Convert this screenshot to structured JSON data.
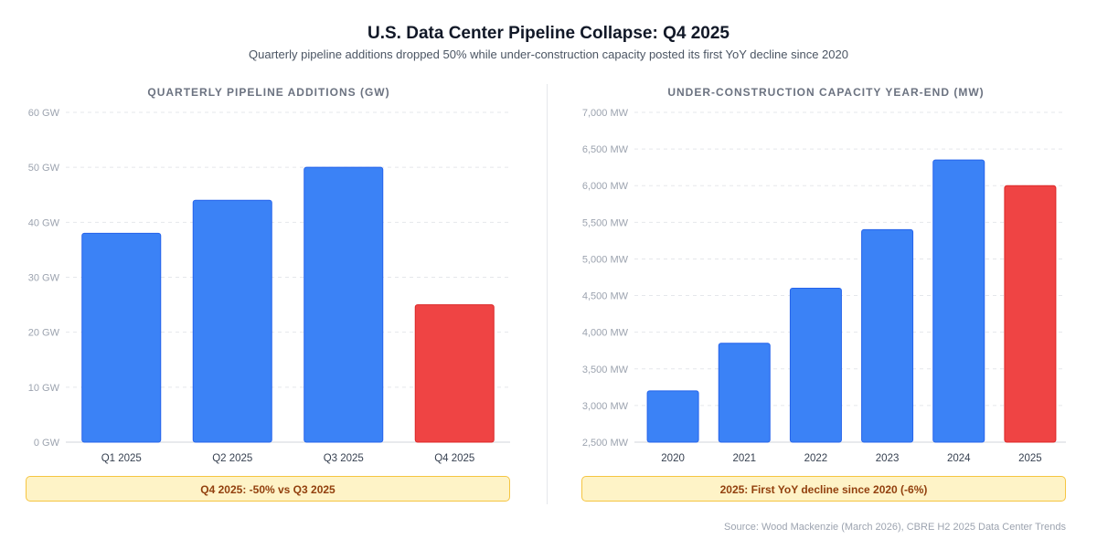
{
  "title": "U.S. Data Center Pipeline Collapse: Q4 2025",
  "subtitle": "Quarterly pipeline additions dropped 50% while under-construction capacity posted its first YoY decline since 2020",
  "source": "Source: Wood Mackenzie (March 2026), CBRE H2 2025 Data Center Trends",
  "colors": {
    "normal": "#3b82f6",
    "highlight": "#ef4444",
    "grid": "#e5e7eb"
  },
  "chart_data": [
    {
      "type": "bar",
      "title": "QUARTERLY PIPELINE ADDITIONS (GW)",
      "categories": [
        "Q1 2025",
        "Q2 2025",
        "Q3 2025",
        "Q4 2025"
      ],
      "values": [
        38,
        44,
        50,
        25
      ],
      "highlight": [
        false,
        false,
        false,
        true
      ],
      "ylim": [
        0,
        60
      ],
      "yticks": [
        0,
        10,
        20,
        30,
        40,
        50,
        60
      ],
      "ytick_labels": [
        "0 GW",
        "10 GW",
        "20 GW",
        "30 GW",
        "40 GW",
        "50 GW",
        "60 GW"
      ],
      "grid": true,
      "annotation": "Q4 2025: -50% vs Q3 2025"
    },
    {
      "type": "bar",
      "title": "UNDER-CONSTRUCTION CAPACITY YEAR-END (MW)",
      "categories": [
        "2020",
        "2021",
        "2022",
        "2023",
        "2024",
        "2025"
      ],
      "values": [
        3200,
        3850,
        4600,
        5400,
        6350,
        6000
      ],
      "highlight": [
        false,
        false,
        false,
        false,
        false,
        true
      ],
      "ylim": [
        2500,
        7000
      ],
      "yticks": [
        2500,
        3000,
        3500,
        4000,
        4500,
        5000,
        5500,
        6000,
        6500,
        7000
      ],
      "ytick_labels": [
        "2,500 MW",
        "3,000 MW",
        "3,500 MW",
        "4,000 MW",
        "4,500 MW",
        "5,000 MW",
        "5,500 MW",
        "6,000 MW",
        "6,500 MW",
        "7,000 MW"
      ],
      "grid": true,
      "annotation": "2025: First YoY decline since 2020 (-6%)"
    }
  ]
}
